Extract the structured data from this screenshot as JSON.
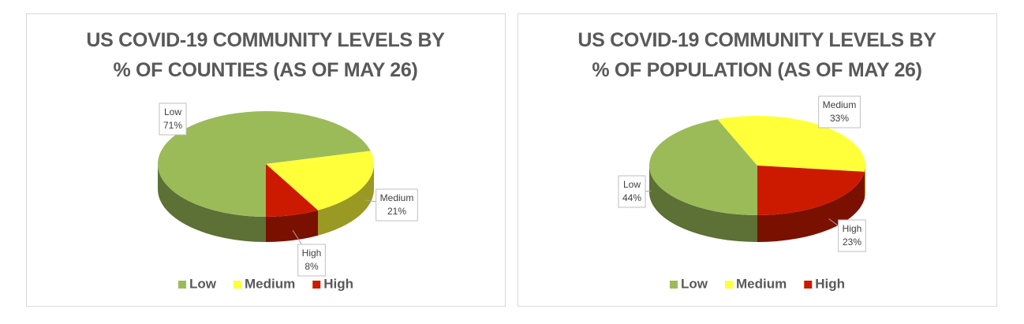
{
  "chart_data": [
    {
      "type": "pie",
      "title": "US COVID-19 COMMUNITY LEVELS BY\n% OF COUNTIES (AS OF MAY 26)",
      "categories": [
        "Low",
        "Medium",
        "High"
      ],
      "values": [
        71,
        21,
        8
      ],
      "value_labels": [
        "71%",
        "21%",
        "8%"
      ],
      "colors": [
        "#9bbb59",
        "#ffff3a",
        "#cc1a00"
      ],
      "legend": "bottom"
    },
    {
      "type": "pie",
      "title": "US COVID-19 COMMUNITY LEVELS BY\n% OF POPULATION (AS OF MAY 26)",
      "categories": [
        "Low",
        "Medium",
        "High"
      ],
      "values": [
        44,
        33,
        23
      ],
      "value_labels": [
        "44%",
        "33%",
        "23%"
      ],
      "colors": [
        "#9bbb59",
        "#ffff3a",
        "#cc1a00"
      ],
      "legend": "bottom"
    }
  ]
}
